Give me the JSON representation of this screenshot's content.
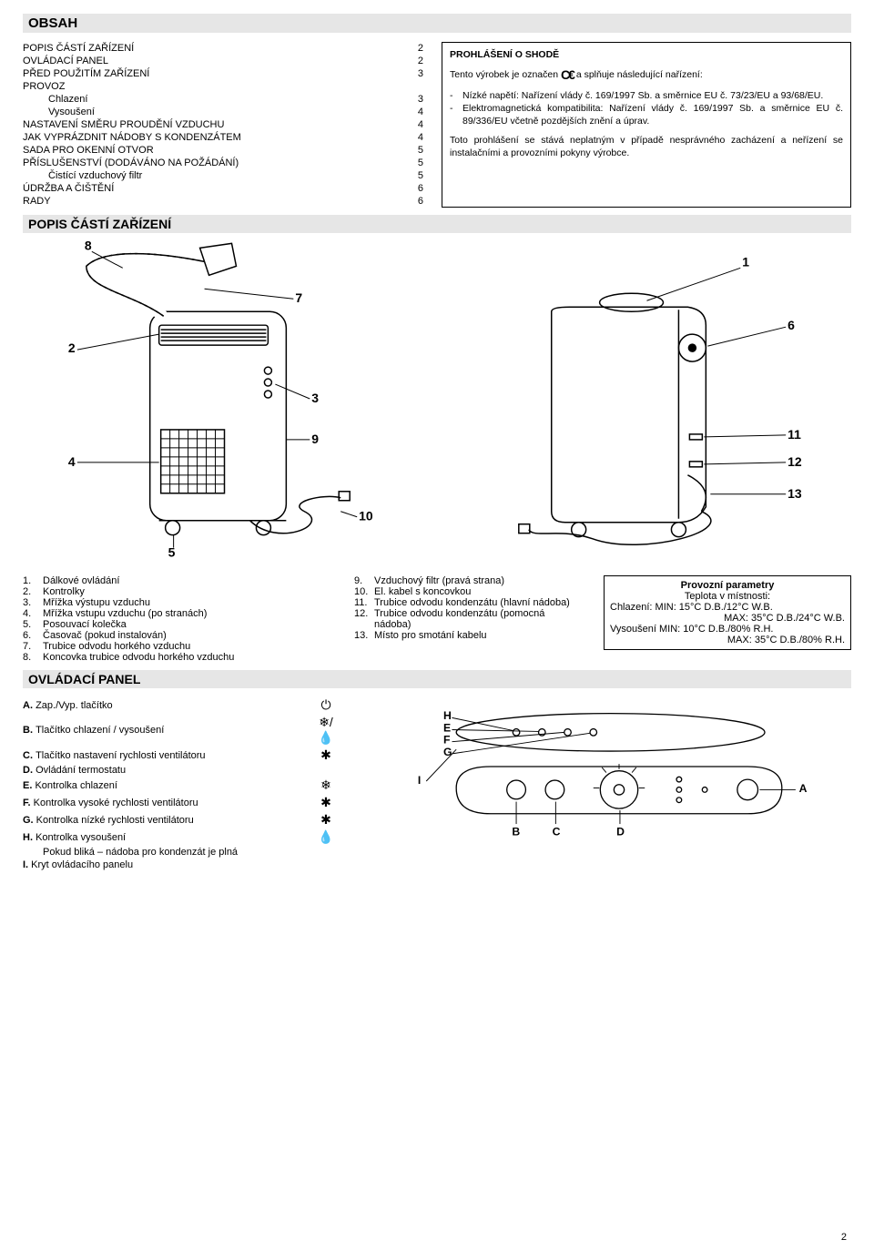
{
  "page_number": "2",
  "heading_obsah": "OBSAH",
  "heading_popis": "POPIS ČÁSTÍ ZAŘÍZENÍ",
  "heading_panel": "OVLÁDACÍ PANEL",
  "toc": [
    {
      "label": "POPIS ČÁSTÍ ZAŘÍZENÍ",
      "page": "2",
      "indent": 0
    },
    {
      "label": "OVLÁDACÍ PANEL",
      "page": "2",
      "indent": 0
    },
    {
      "label": "PŘED POUŽITÍM ZAŘÍZENÍ",
      "page": "3",
      "indent": 0
    },
    {
      "label": "PROVOZ",
      "page": "",
      "indent": 0
    },
    {
      "label": "Chlazení",
      "page": "3",
      "indent": 1
    },
    {
      "label": "Vysoušení",
      "page": "4",
      "indent": 1
    },
    {
      "label": "NASTAVENÍ SMĚRU PROUDĚNÍ VZDUCHU",
      "page": "4",
      "indent": 0
    },
    {
      "label": "JAK VYPRÁZDNIT NÁDOBY S KONDENZÁTEM",
      "page": "4",
      "indent": 0
    },
    {
      "label": "SADA PRO OKENNÍ OTVOR",
      "page": "5",
      "indent": 0
    },
    {
      "label": "PŘÍSLUŠENSTVÍ (DODÁVÁNO NA POŽÁDÁNÍ)",
      "page": "5",
      "indent": 0
    },
    {
      "label": "Čistící vzduchový filtr",
      "page": "5",
      "indent": 1
    },
    {
      "label": "ÚDRŽBA A ČIŠTĚNÍ",
      "page": "6",
      "indent": 0
    },
    {
      "label": "RADY",
      "page": "6",
      "indent": 0
    }
  ],
  "declaration": {
    "title": "PROHLÁŠENÍ O SHODĚ",
    "intro_pre": "Tento výrobek je označen",
    "intro_post": "a splňuje následující nařízení:",
    "bullets": [
      "Nízké napětí: Nařízení vlády č. 169/1997 Sb. a směrnice EU č. 73/23/EU a 93/68/EU.",
      "Elektromagnetická kompatibilita: Nařízení vlády č. 169/1997 Sb. a směrnice EU č. 89/336/EU včetně pozdějších znění a úprav."
    ],
    "footer": "Toto prohlášení se stává neplatným v případě nesprávného zacházení a neřízení se instalačními a provozními pokyny výrobce."
  },
  "diagram_numbers": {
    "left": [
      "8",
      "7",
      "2",
      "3",
      "9",
      "4",
      "10",
      "5"
    ],
    "right": [
      "1",
      "6",
      "11",
      "12",
      "13"
    ]
  },
  "parts_left": [
    {
      "n": "1.",
      "t": "Dálkové ovládání"
    },
    {
      "n": "2.",
      "t": "Kontrolky"
    },
    {
      "n": "3.",
      "t": "Mřížka výstupu vzduchu"
    },
    {
      "n": "4.",
      "t": "Mřížka vstupu vzduchu (po stranách)"
    },
    {
      "n": "5.",
      "t": "Posouvací kolečka"
    },
    {
      "n": "6.",
      "t": "Časovač (pokud instalován)"
    },
    {
      "n": "7.",
      "t": "Trubice odvodu horkého vzduchu"
    },
    {
      "n": "8.",
      "t": "Koncovka trubice odvodu horkého vzduchu"
    }
  ],
  "parts_right": [
    {
      "n": "9.",
      "t": "Vzduchový filtr (pravá strana)"
    },
    {
      "n": "10.",
      "t": "El. kabel s koncovkou"
    },
    {
      "n": "11.",
      "t": "Trubice odvodu kondenzátu (hlavní nádoba)"
    },
    {
      "n": "12.",
      "t": "Trubice odvodu kondenzátu (pomocná nádoba)"
    },
    {
      "n": "13.",
      "t": "Místo pro smotání kabelu"
    }
  ],
  "params": {
    "title": "Provozní parametry",
    "sub": "Teplota v místnosti:",
    "l1": "Chlazení:   MIN: 15°C D.B./12°C W.B.",
    "l2": "MAX: 35°C D.B./24°C W.B.",
    "l3": "Vysoušení MIN: 10°C D.B./80% R.H.",
    "l4": "MAX: 35°C D.B./80% R.H."
  },
  "panel": [
    {
      "k": "A.",
      "t": "Zap./Vyp. tlačítko",
      "bold": true,
      "icon": "⏻"
    },
    {
      "k": "B.",
      "t": "Tlačítko chlazení / vysoušení",
      "bold": true,
      "icon": "❄/💧"
    },
    {
      "k": "C.",
      "t": "Tlačítko nastavení rychlosti ventilátoru",
      "bold": true,
      "icon": "✱"
    },
    {
      "k": "D.",
      "t": "Ovládání termostatu",
      "bold": true,
      "icon": ""
    },
    {
      "k": "E.",
      "t": "Kontrolka chlazení",
      "bold": true,
      "icon": "❄"
    },
    {
      "k": "F.",
      "t": "Kontrolka vysoké rychlosti ventilátoru",
      "bold": true,
      "icon": "✱"
    },
    {
      "k": "G.",
      "t": "Kontrolka nízké rychlosti ventilátoru",
      "bold": true,
      "icon": "✱"
    },
    {
      "k": "H.",
      "t": "Kontrolka vysoušení",
      "bold": true,
      "icon": "💧"
    },
    {
      "k": "",
      "t": "Pokud bliká – nádoba pro kondenzát je plná",
      "bold": false,
      "icon": ""
    },
    {
      "k": "I.",
      "t": "Kryt ovládacího panelu",
      "bold": true,
      "icon": ""
    }
  ],
  "panel_letters": {
    "H": "H",
    "E": "E",
    "F": "F",
    "G": "G",
    "I": "I",
    "A": "A",
    "B": "B",
    "C": "C",
    "D": "D"
  },
  "colors": {
    "bg": "#ffffff",
    "bar": "#e6e6e6",
    "stroke": "#000000"
  }
}
